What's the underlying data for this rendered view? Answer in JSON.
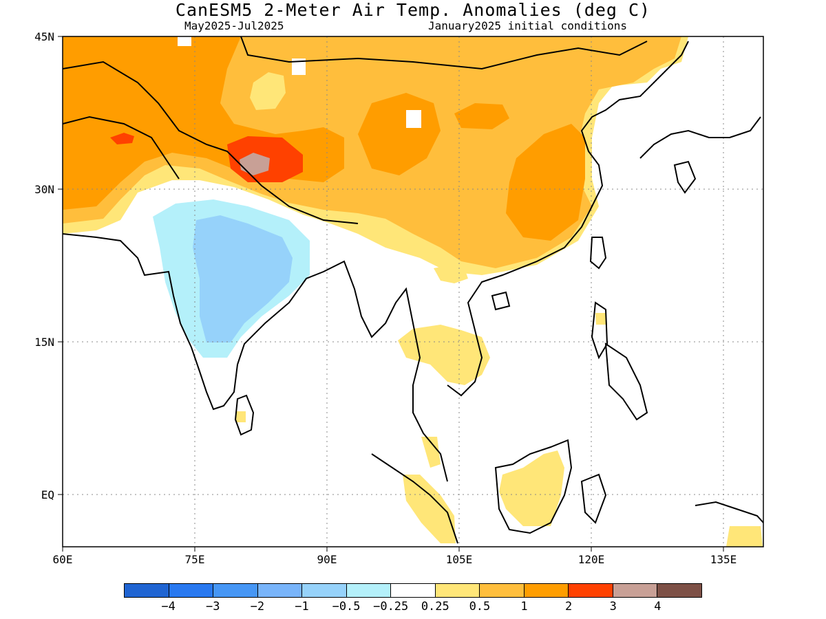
{
  "header": {
    "title": "CanESM5 2-Meter Air Temp. Anomalies (deg C)",
    "period": "May2025-Jul2025",
    "initial_conditions": "January2025 initial conditions"
  },
  "map": {
    "region": "South and East Asia",
    "lon_range": [
      60,
      140
    ],
    "lat_range": [
      -6,
      45
    ],
    "lat_ticks": [
      "45N",
      "30N",
      "15N",
      "EQ"
    ],
    "lon_ticks": [
      "60E",
      "75E",
      "90E",
      "105E",
      "120E",
      "135E"
    ],
    "gridlines": "dotted"
  },
  "colorbar": {
    "colors": [
      "#1f64d2",
      "#2878f0",
      "#4696f5",
      "#78b4fa",
      "#96d2fa",
      "#b4f0fa",
      "#ffffff",
      "#ffe678",
      "#ffbe3c",
      "#ff9d00",
      "#ff4100",
      "#c8a096",
      "#7d5046"
    ],
    "labels": [
      "-4",
      "-3",
      "-2",
      "-1",
      "-0.5",
      "-0.25",
      "0.25",
      "0.5",
      "1",
      "2",
      "3",
      "4"
    ]
  }
}
